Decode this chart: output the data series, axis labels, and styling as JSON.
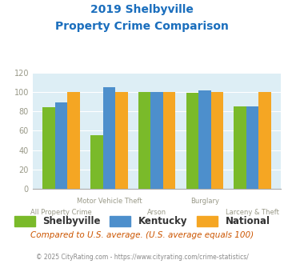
{
  "title_line1": "2019 Shelbyville",
  "title_line2": "Property Crime Comparison",
  "categories": [
    "All Property Crime",
    "Motor Vehicle Theft",
    "Arson",
    "Burglary",
    "Larceny & Theft"
  ],
  "shelbyville": [
    84,
    55,
    100,
    99,
    85
  ],
  "kentucky": [
    89,
    105,
    100,
    102,
    85
  ],
  "national": [
    100,
    100,
    100,
    100,
    100
  ],
  "colors": {
    "shelbyville": "#7aba2a",
    "kentucky": "#4d8fcc",
    "national": "#f5a623"
  },
  "ylim": [
    0,
    120
  ],
  "yticks": [
    0,
    20,
    40,
    60,
    80,
    100,
    120
  ],
  "footnote": "Compared to U.S. average. (U.S. average equals 100)",
  "copyright": "© 2025 CityRating.com - https://www.cityrating.com/crime-statistics/",
  "title_color": "#1a6ebd",
  "footnote_color": "#cc5500",
  "copyright_color": "#888888",
  "plot_bg_color": "#ddeef5"
}
